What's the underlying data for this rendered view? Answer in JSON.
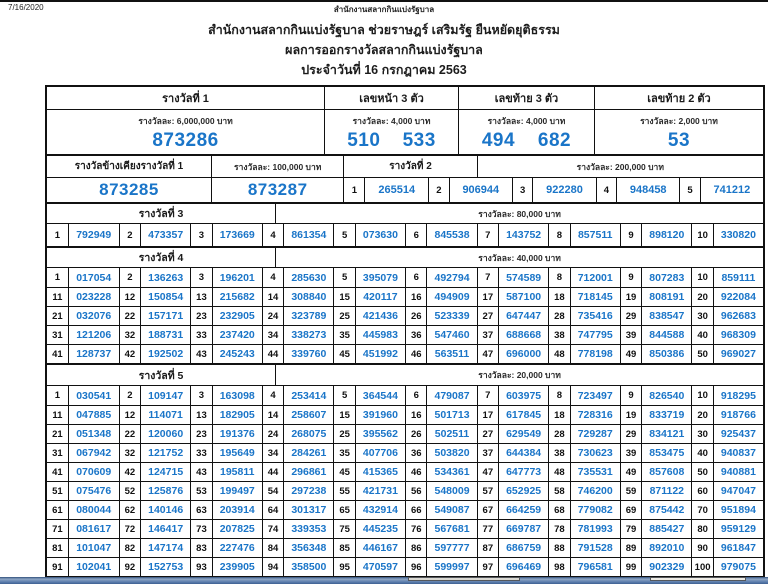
{
  "page": {
    "print_date": "7/16/2020",
    "print_doc_title": "สำนักงานสลากกินแบ่งรัฐบาล",
    "title_line1": "สำนักงานสลากกินแบ่งรัฐบาล ช่วยราษฎร์ เสริมรัฐ ยืนหยัดยุติธรรม",
    "title_line2": "ผลการออกรางวัลสลากกินแบ่งรัฐบาล",
    "title_line3": "ประจำวันที่ 16 กรกฎาคม 2563"
  },
  "colors": {
    "number_blue": "#1a75c8",
    "text_black": "#1a1a1a",
    "border_black": "#111111",
    "taskbar_blue": "#5d7fae"
  },
  "top_prizes": {
    "columns": [
      {
        "label": "รางวัลที่ 1",
        "amount": "รางวัลละ: 6,000,000 บาท",
        "values": [
          "873286"
        ]
      },
      {
        "label": "เลขหน้า 3 ตัว",
        "amount": "รางวัลละ: 4,000 บาท",
        "values": [
          "510",
          "533"
        ]
      },
      {
        "label": "เลขท้าย 3 ตัว",
        "amount": "รางวัลละ: 4,000 บาท",
        "values": [
          "494",
          "682"
        ]
      },
      {
        "label": "เลขท้าย 2 ตัว",
        "amount": "รางวัลละ: 2,000 บาท",
        "values": [
          "53"
        ]
      }
    ]
  },
  "side_prizes": {
    "adjacent_label": "รางวัลข้างเคียงรางวัลที่ 1",
    "adjacent_amount": "รางวัลละ: 100,000 บาท",
    "adjacent_values": [
      "873285",
      "873287"
    ],
    "second_label": "รางวัลที่ 2",
    "second_amount": "รางวัลละ: 200,000 บาท",
    "second_numbers": [
      "265514",
      "906944",
      "922280",
      "948458",
      "741212"
    ]
  },
  "prize3": {
    "label": "รางวัลที่ 3",
    "amount": "รางวัลละ: 80,000 บาท",
    "numbers": [
      "792949",
      "473357",
      "173669",
      "861354",
      "073630",
      "845538",
      "143752",
      "857511",
      "898120",
      "330820"
    ]
  },
  "prize4": {
    "label": "รางวัลที่ 4",
    "amount": "รางวัลละ: 40,000 บาท",
    "numbers": [
      "017054",
      "136263",
      "196201",
      "285630",
      "395079",
      "492794",
      "574589",
      "712001",
      "807283",
      "859111",
      "023228",
      "150854",
      "215682",
      "308840",
      "420117",
      "494909",
      "587100",
      "718145",
      "808191",
      "922084",
      "032076",
      "157171",
      "232905",
      "323789",
      "421436",
      "523339",
      "647447",
      "735416",
      "838547",
      "962683",
      "121206",
      "188731",
      "237420",
      "338273",
      "445983",
      "547460",
      "688668",
      "747795",
      "844588",
      "968309",
      "128737",
      "192502",
      "245243",
      "339760",
      "451992",
      "563511",
      "696000",
      "778198",
      "850386",
      "969027"
    ]
  },
  "prize5": {
    "label": "รางวัลที่ 5",
    "amount": "รางวัลละ: 20,000 บาท",
    "numbers": [
      "030541",
      "109147",
      "163098",
      "253414",
      "364544",
      "479087",
      "603975",
      "723497",
      "826540",
      "918295",
      "047885",
      "114071",
      "182905",
      "258607",
      "391960",
      "501713",
      "617845",
      "728316",
      "833719",
      "918766",
      "051348",
      "120060",
      "191376",
      "268075",
      "395562",
      "502511",
      "629549",
      "729287",
      "834121",
      "925437",
      "067942",
      "121752",
      "195649",
      "284261",
      "407706",
      "503820",
      "644384",
      "730623",
      "853475",
      "940837",
      "070609",
      "124715",
      "195811",
      "296861",
      "415365",
      "534361",
      "647773",
      "735531",
      "857608",
      "940881",
      "075476",
      "125876",
      "199497",
      "297238",
      "421731",
      "548009",
      "652925",
      "746200",
      "871122",
      "947047",
      "080044",
      "140146",
      "203914",
      "301317",
      "432914",
      "549087",
      "664259",
      "779082",
      "875442",
      "951894",
      "081617",
      "146417",
      "207825",
      "339353",
      "445235",
      "567681",
      "669787",
      "781993",
      "885427",
      "959129",
      "101047",
      "147174",
      "227476",
      "356348",
      "446167",
      "597777",
      "686759",
      "791528",
      "892010",
      "961847",
      "102041",
      "152753",
      "239905",
      "358500",
      "470597",
      "599997",
      "696469",
      "796581",
      "902329",
      "979075"
    ]
  }
}
